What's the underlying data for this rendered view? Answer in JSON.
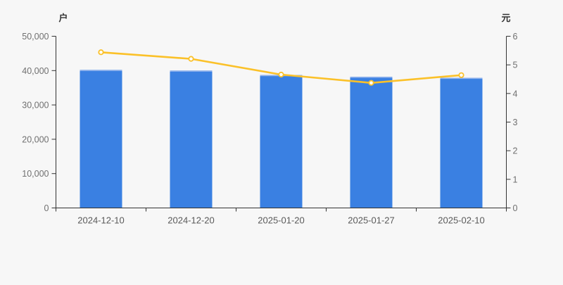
{
  "chart_data": {
    "type": "combo",
    "title": "",
    "categories": [
      "2024-12-10",
      "2024-12-20",
      "2025-01-20",
      "2025-01-27",
      "2025-02-10"
    ],
    "series": [
      {
        "name": "户",
        "type": "bar",
        "axis": "left",
        "values": [
          40200,
          40000,
          38700,
          38200,
          37900
        ],
        "color": "#3a80e2",
        "cap_color": "#8fb2ec"
      },
      {
        "name": "元",
        "type": "line",
        "axis": "right",
        "values": [
          5.44,
          5.21,
          4.66,
          4.37,
          4.64
        ],
        "color": "#fbc129",
        "marker": "open-circle",
        "marker_fill": "#ffffff"
      }
    ],
    "left_axis": {
      "label": "户",
      "min": 0,
      "max": 50000,
      "tick_step": 10000,
      "tick_labels": [
        "0",
        "10,000",
        "20,000",
        "30,000",
        "40,000",
        "50,000"
      ]
    },
    "right_axis": {
      "label": "元",
      "min": 0,
      "max": 6,
      "tick_step": 1,
      "tick_labels": [
        "0",
        "1",
        "2",
        "3",
        "4",
        "5",
        "6"
      ]
    },
    "grid": false,
    "legend": false,
    "colors": {
      "background": "#f7f7f7",
      "axis_line": "#333333",
      "y_tick_text": "#707070",
      "x_tick_text": "#595959",
      "axis_title_text": "#333333"
    }
  }
}
